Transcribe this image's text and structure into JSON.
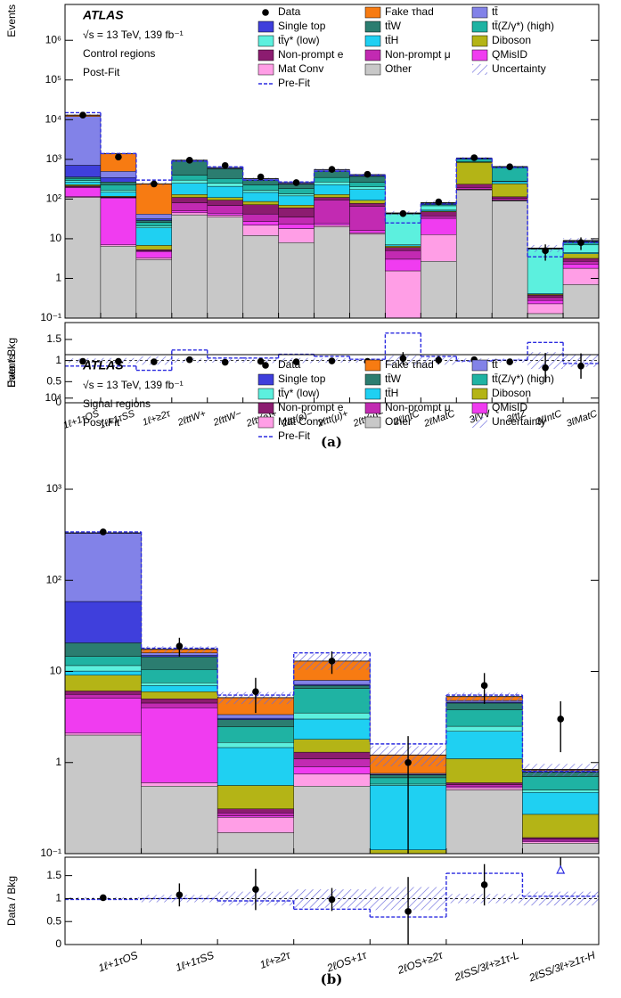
{
  "chart_data": [
    {
      "type": "stacked_bar",
      "log_scale": true,
      "experiment": "ATLAS",
      "annotations": [
        "√s = 13 TeV, 139 fb⁻¹",
        "Control regions",
        "Post-Fit"
      ],
      "ylabel": "Events",
      "caption": "(a)",
      "categories": [
        "1ℓ+1τOS",
        "1ℓ+1τSS",
        "1ℓ+≥2τ",
        "2ℓttW+",
        "2ℓttW−",
        "2ℓtt(e)+",
        "2ℓtt(e)−",
        "2ℓtt(μ)+",
        "2ℓtt(μ)−",
        "2ℓIntC",
        "2ℓMatC",
        "3ℓVV",
        "3ℓttZ",
        "3ℓIntC",
        "3ℓMatC"
      ],
      "ylim": [
        0.1,
        8000000
      ],
      "yticks": [
        {
          "value": 0.1,
          "label": "10⁻¹"
        },
        1,
        10,
        {
          "value": 100,
          "label": "10²"
        },
        {
          "value": 1000,
          "label": "10³"
        },
        {
          "value": 10000,
          "label": "10⁴"
        },
        {
          "value": 100000,
          "label": "10⁵"
        },
        {
          "value": 1000000,
          "label": "10⁶"
        }
      ],
      "data": {
        "name": "Data",
        "color": "#000000",
        "values": [
          13000,
          1150,
          240,
          950,
          700,
          360,
          260,
          560,
          420,
          43,
          85,
          1100,
          650,
          5,
          8
        ],
        "errors": [
          114,
          34,
          15,
          31,
          26,
          19,
          16,
          24,
          20,
          6.6,
          9.2,
          33,
          25,
          2.2,
          2.8
        ]
      },
      "series": [
        {
          "name": "Fake τhad",
          "color": "#f77b12",
          "values": [
            1000,
            900,
            200,
            5,
            3,
            3,
            2,
            5,
            3,
            0.2,
            0.5,
            2,
            1,
            0.01,
            0.1
          ]
        },
        {
          "name": "tt̄",
          "color": "#8282e8",
          "values": [
            11300,
            150,
            10,
            40,
            30,
            20,
            18,
            40,
            30,
            0.5,
            2,
            20,
            10,
            0.1,
            0.3
          ]
        },
        {
          "name": "Single top",
          "color": "#3f3fdc",
          "values": [
            350,
            80,
            3,
            10,
            8,
            5,
            5,
            10,
            8,
            0.2,
            1,
            5,
            5,
            0.02,
            0.1
          ]
        },
        {
          "name": "tt̄W",
          "color": "#2b7d70",
          "values": [
            30,
            40,
            3,
            500,
            250,
            70,
            50,
            150,
            110,
            0.5,
            5,
            40,
            30,
            0.05,
            0.5
          ]
        },
        {
          "name": "tt̄(Z/γ*) (high)",
          "color": "#1fb3a3",
          "values": [
            40,
            60,
            5,
            100,
            80,
            60,
            50,
            80,
            60,
            1,
            5,
            150,
            330,
            0.2,
            1
          ]
        },
        {
          "name": "tt̄γ* (low)",
          "color": "#5cf0de",
          "values": [
            20,
            20,
            2,
            50,
            40,
            20,
            15,
            40,
            30,
            35,
            15,
            10,
            10,
            5,
            2.5
          ]
        },
        {
          "name": "tt̄H",
          "color": "#1fd0f2",
          "values": [
            40,
            30,
            12,
            120,
            100,
            60,
            50,
            100,
            80,
            0.5,
            3,
            20,
            30,
            0.02,
            0.3
          ]
        },
        {
          "name": "Diboson",
          "color": "#b4b416",
          "values": [
            15,
            5,
            1.5,
            20,
            15,
            15,
            10,
            20,
            15,
            0.5,
            2,
            600,
            130,
            0.02,
            1
          ]
        },
        {
          "name": "Non-prompt e",
          "color": "#8c1c70",
          "values": [
            10,
            3,
            0.3,
            30,
            25,
            30,
            25,
            15,
            12,
            1,
            10,
            40,
            10,
            0.05,
            0.5
          ]
        },
        {
          "name": "Non-prompt μ",
          "color": "#c22ab2",
          "values": [
            10,
            3,
            0.2,
            30,
            25,
            15,
            12,
            70,
            50,
            2,
            5,
            20,
            10,
            0.05,
            0.4
          ]
        },
        {
          "name": "QMisID",
          "color": "#f03cf0",
          "values": [
            80,
            100,
            1.5,
            5,
            5,
            5,
            5,
            3,
            2,
            1.5,
            20,
            3,
            2,
            0.05,
            0.5
          ]
        },
        {
          "name": "Mat Conv",
          "color": "#ff9ee6",
          "values": [
            5,
            0.5,
            0.3,
            5,
            4,
            10,
            10,
            2,
            1,
            1.5,
            10,
            3,
            2,
            0.1,
            1.1
          ]
        },
        {
          "name": "Other",
          "color": "#c8c8c8",
          "values": [
            110,
            6.5,
            3,
            40,
            35,
            12,
            8,
            20,
            13,
            0.05,
            2.7,
            170,
            90,
            0.13,
            0.7
          ]
        }
      ],
      "uncertainty": {
        "name": "Uncertainty",
        "color": "#6a6adc",
        "values": [
          0.05,
          0.06,
          0.1,
          0.05,
          0.05,
          0.06,
          0.06,
          0.05,
          0.05,
          0.12,
          0.1,
          0.05,
          0.05,
          0.2,
          0.15
        ]
      },
      "prefit": {
        "name": "Pre-Fit",
        "color": "#2b2be0",
        "values": [
          15000,
          1400,
          300,
          900,
          650,
          300,
          270,
          500,
          400,
          25,
          75,
          1050,
          620,
          3.5,
          8
        ]
      },
      "ratio_panel": {
        "ylabel": "Data / Bkg",
        "ylim": [
          0,
          1.9
        ],
        "yticks": [
          0,
          0.5,
          1,
          1.5
        ],
        "values": [
          0.98,
          0.98,
          0.97,
          1.02,
          0.96,
          0.98,
          0.97,
          0.99,
          0.98,
          1.05,
          1.01,
          1.02,
          0.97,
          0.83,
          0.87
        ],
        "errors": [
          0.01,
          0.03,
          0.06,
          0.03,
          0.04,
          0.05,
          0.06,
          0.04,
          0.05,
          0.15,
          0.1,
          0.03,
          0.04,
          0.35,
          0.3
        ],
        "prefit": [
          0.87,
          0.87,
          0.77,
          1.25,
          1.06,
          1.06,
          1.15,
          1.1,
          1.03,
          1.65,
          1.1,
          0.99,
          1.01,
          1.43,
          0.93
        ]
      }
    },
    {
      "type": "stacked_bar",
      "log_scale": true,
      "experiment": "ATLAS",
      "annotations": [
        "√s = 13 TeV, 139 fb⁻¹",
        "Signal regions",
        "Post-Fit"
      ],
      "ylabel": "Events",
      "caption": "(b)",
      "categories": [
        "1ℓ+1τOS",
        "1ℓ+1τSS",
        "1ℓ+≥2τ",
        "2ℓOS+1τ",
        "2ℓOS+≥2τ",
        "2ℓSS/3ℓ+≥1τ-L",
        "2ℓSS/3ℓ+≥1τ-H"
      ],
      "ylim": [
        0.1,
        30000
      ],
      "yticks": [
        {
          "value": 0.1,
          "label": "10⁻¹"
        },
        1,
        10,
        {
          "value": 100,
          "label": "10²"
        },
        {
          "value": 1000,
          "label": "10³"
        },
        {
          "value": 10000,
          "label": "10⁴"
        }
      ],
      "data": {
        "name": "Data",
        "color": "#000000",
        "values": [
          340,
          19,
          6,
          13,
          1,
          7,
          3
        ],
        "errors": [
          18,
          4.4,
          2.5,
          3.6,
          0.95,
          2.6,
          1.7
        ]
      },
      "series": [
        {
          "name": "Fake τhad",
          "color": "#f77b12",
          "values": [
            3,
            1.5,
            1.8,
            5,
            0.45,
            0.5,
            0.02
          ]
        },
        {
          "name": "tt̄",
          "color": "#8282e8",
          "values": [
            270,
            1,
            0.3,
            0.8,
            0.02,
            0.2,
            0.03
          ]
        },
        {
          "name": "Single top",
          "color": "#3f3fdc",
          "values": [
            38,
            0.5,
            0.1,
            0.2,
            0.01,
            0.1,
            0.01
          ]
        },
        {
          "name": "tt̄W",
          "color": "#2b7d70",
          "values": [
            6,
            4,
            0.5,
            0.5,
            0.05,
            0.7,
            0.08
          ]
        },
        {
          "name": "tt̄(Z/γ*) (high)",
          "color": "#1fb3a3",
          "values": [
            3,
            3,
            0.8,
            3,
            0.1,
            1.3,
            0.2
          ]
        },
        {
          "name": "tt̄γ* (low)",
          "color": "#5cf0de",
          "values": [
            1.5,
            0.5,
            0.2,
            0.5,
            0.02,
            0.3,
            0.03
          ]
        },
        {
          "name": "tt̄H",
          "color": "#1fd0f2",
          "values": [
            1,
            1,
            0.9,
            1.2,
            0.45,
            1.1,
            0.2
          ]
        },
        {
          "name": "Diboson",
          "color": "#b4b416",
          "values": [
            3,
            1,
            0.25,
            0.5,
            0.02,
            0.5,
            0.12
          ]
        },
        {
          "name": "Non-prompt e",
          "color": "#8c1c70",
          "values": [
            0.5,
            0.5,
            0.03,
            0.2,
            0.01,
            0.03,
            0.005
          ]
        },
        {
          "name": "Non-prompt μ",
          "color": "#c22ab2",
          "values": [
            0.5,
            0.5,
            0.02,
            0.2,
            0.01,
            0.02,
            0.005
          ]
        },
        {
          "name": "QMisID",
          "color": "#f03cf0",
          "values": [
            3,
            3.4,
            0.01,
            0.15,
            0.01,
            0.02,
            0.005
          ]
        },
        {
          "name": "Mat Conv",
          "color": "#ff9ee6",
          "values": [
            0.1,
            0.05,
            0.08,
            0.2,
            0.01,
            0.03,
            0.005
          ]
        },
        {
          "name": "Other",
          "color": "#c8c8c8",
          "values": [
            2,
            0.55,
            0.17,
            0.55,
            0.05,
            0.5,
            0.13
          ]
        }
      ],
      "uncertainty": {
        "name": "Uncertainty",
        "color": "#6a6adc",
        "values": [
          0.03,
          0.08,
          0.15,
          0.2,
          0.25,
          0.1,
          0.15
        ]
      },
      "prefit": {
        "name": "Pre-Fit",
        "color": "#2b2be0",
        "values": [
          340,
          18,
          5.5,
          16,
          1.6,
          5.5,
          0.8
        ]
      },
      "ratio_panel": {
        "ylabel": "Data / Bkg",
        "ylim": [
          0,
          1.9
        ],
        "yticks": [
          0,
          0.5,
          1,
          1.5
        ],
        "values": [
          1.02,
          1.08,
          1.2,
          0.98,
          0.72,
          1.3,
          3.6
        ],
        "errors": [
          0.05,
          0.25,
          0.45,
          0.25,
          0.75,
          0.45,
          2
        ],
        "prefit": [
          0.98,
          1,
          0.95,
          0.77,
          0.6,
          1.55,
          1.05
        ]
      }
    }
  ]
}
